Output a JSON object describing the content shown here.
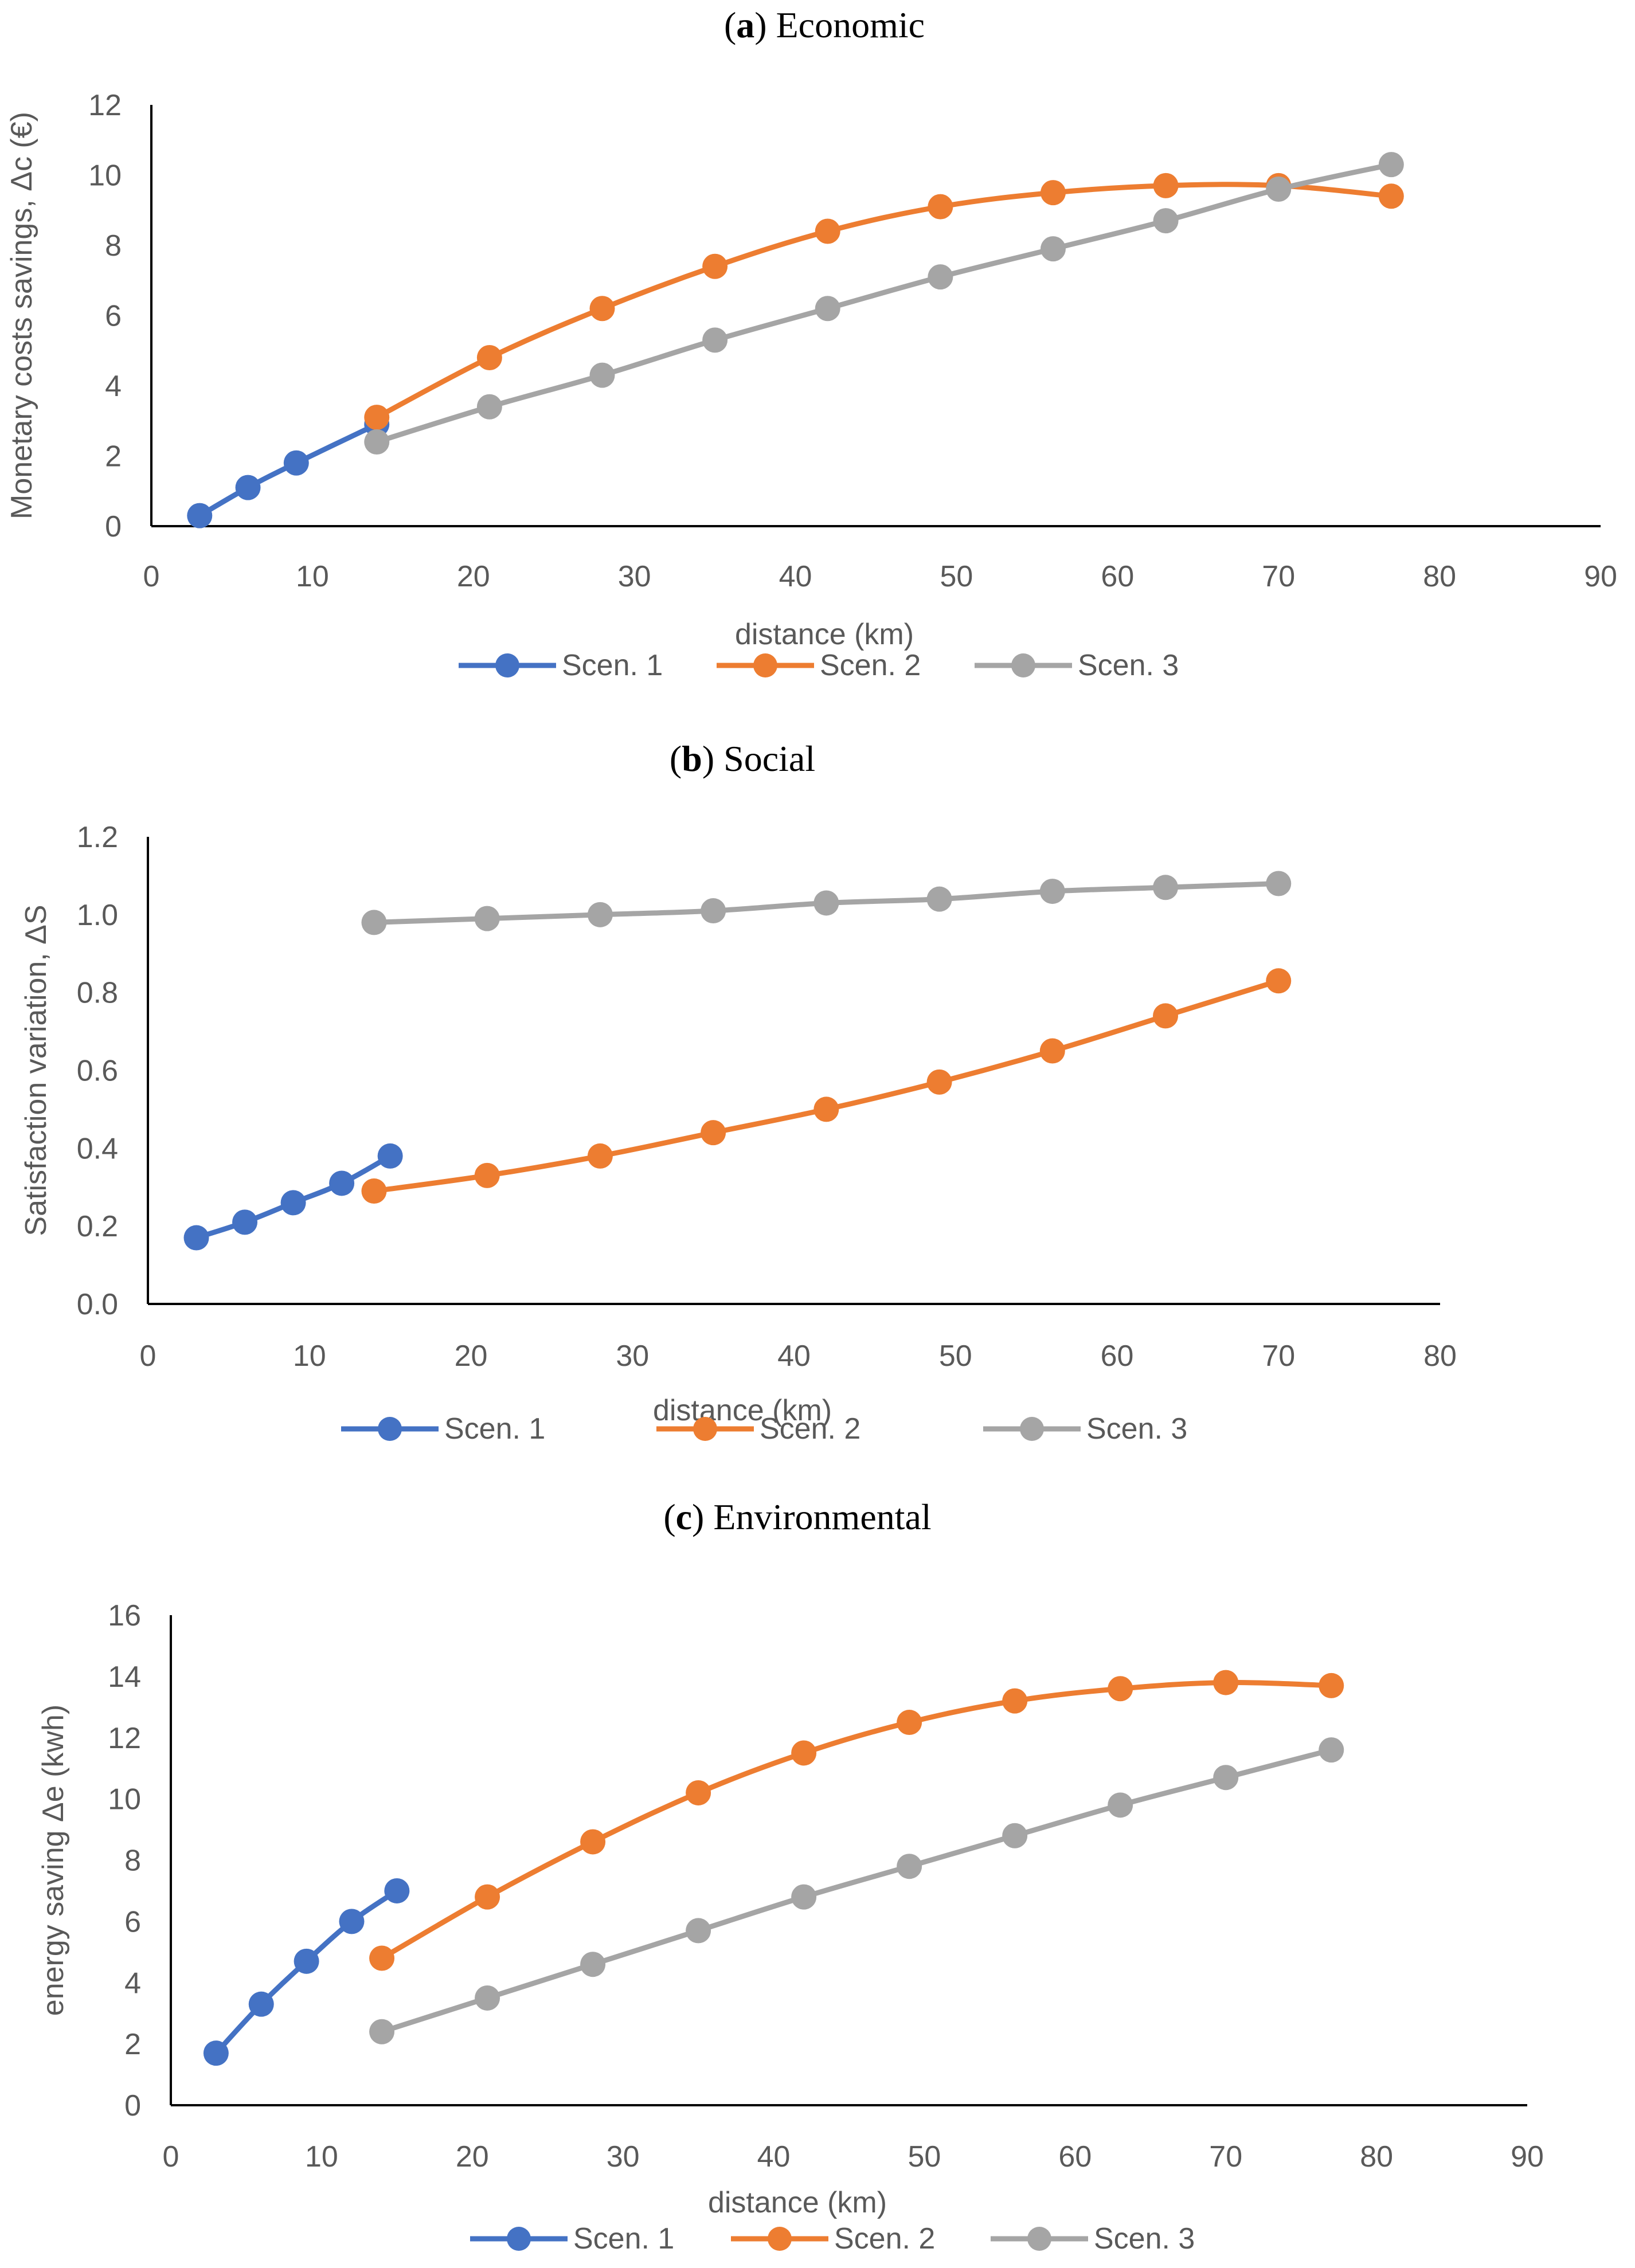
{
  "chart_data": [
    {
      "type": "line",
      "title_letter": "a",
      "title_rest": " Economic",
      "xlabel": "distance (km)",
      "ylabel": "Monetary costs savings, Δc (€)",
      "xlim": [
        0,
        90
      ],
      "ylim": [
        0,
        12
      ],
      "xticks": [
        "0",
        "10",
        "20",
        "30",
        "40",
        "50",
        "60",
        "70",
        "80",
        "90"
      ],
      "yticks": [
        "0",
        "2",
        "4",
        "6",
        "8",
        "10",
        "12"
      ],
      "legend_position": "bottom",
      "series": [
        {
          "name": "Scen. 1",
          "color": "#4472C4",
          "x": [
            3,
            6,
            9,
            14
          ],
          "y": [
            0.3,
            1.1,
            1.8,
            2.9
          ]
        },
        {
          "name": "Scen. 2",
          "color": "#ED7D31",
          "x": [
            14,
            21,
            28,
            35,
            42,
            49,
            56,
            63,
            70,
            77
          ],
          "y": [
            3.1,
            4.8,
            6.2,
            7.4,
            8.4,
            9.1,
            9.5,
            9.7,
            9.7,
            9.4
          ]
        },
        {
          "name": "Scen. 3",
          "color": "#A5A5A5",
          "x": [
            14,
            21,
            28,
            35,
            42,
            49,
            56,
            63,
            70,
            77
          ],
          "y": [
            2.4,
            3.4,
            4.3,
            5.3,
            6.2,
            7.1,
            7.9,
            8.7,
            9.6,
            10.3
          ]
        }
      ]
    },
    {
      "type": "line",
      "title_letter": "b",
      "title_rest": " Social",
      "xlabel": "distance (km)",
      "ylabel": "Satisfaction variation, ΔS",
      "xlim": [
        0,
        80
      ],
      "ylim": [
        0,
        1.2
      ],
      "xticks": [
        "0",
        "10",
        "20",
        "30",
        "40",
        "50",
        "60",
        "70",
        "80"
      ],
      "yticks": [
        "0.0",
        "0.2",
        "0.4",
        "0.6",
        "0.8",
        "1.0",
        "1.2"
      ],
      "legend_position": "bottom",
      "series": [
        {
          "name": "Scen. 1",
          "color": "#4472C4",
          "x": [
            3,
            6,
            9,
            12,
            15
          ],
          "y": [
            0.17,
            0.21,
            0.26,
            0.31,
            0.38
          ]
        },
        {
          "name": "Scen. 2",
          "color": "#ED7D31",
          "x": [
            14,
            21,
            28,
            35,
            42,
            49,
            56,
            63,
            70
          ],
          "y": [
            0.29,
            0.33,
            0.38,
            0.44,
            0.5,
            0.57,
            0.65,
            0.74,
            0.83
          ]
        },
        {
          "name": "Scen. 3",
          "color": "#A5A5A5",
          "x": [
            14,
            21,
            28,
            35,
            42,
            49,
            56,
            63,
            70
          ],
          "y": [
            0.98,
            0.99,
            1.0,
            1.01,
            1.03,
            1.04,
            1.06,
            1.07,
            1.08
          ]
        }
      ]
    },
    {
      "type": "line",
      "title_letter": "c",
      "title_rest": " Environmental",
      "xlabel": "distance (km)",
      "ylabel": "energy saving Δe (kwh)",
      "xlim": [
        0,
        90
      ],
      "ylim": [
        0,
        16
      ],
      "xticks": [
        "0",
        "10",
        "20",
        "30",
        "40",
        "50",
        "60",
        "70",
        "80",
        "90"
      ],
      "yticks": [
        "0",
        "2",
        "4",
        "6",
        "8",
        "10",
        "12",
        "14",
        "16"
      ],
      "legend_position": "bottom",
      "series": [
        {
          "name": "Scen. 1",
          "color": "#4472C4",
          "x": [
            3,
            6,
            9,
            12,
            15
          ],
          "y": [
            1.7,
            3.3,
            4.7,
            6.0,
            7.0
          ]
        },
        {
          "name": "Scen. 2",
          "color": "#ED7D31",
          "x": [
            14,
            21,
            28,
            35,
            42,
            49,
            56,
            63,
            70,
            77
          ],
          "y": [
            4.8,
            6.8,
            8.6,
            10.2,
            11.5,
            12.5,
            13.2,
            13.6,
            13.8,
            13.7
          ]
        },
        {
          "name": "Scen. 3",
          "color": "#A5A5A5",
          "x": [
            14,
            21,
            28,
            35,
            42,
            49,
            56,
            63,
            70,
            77
          ],
          "y": [
            2.4,
            3.5,
            4.6,
            5.7,
            6.8,
            7.8,
            8.8,
            9.8,
            10.7,
            11.6
          ]
        }
      ]
    }
  ]
}
